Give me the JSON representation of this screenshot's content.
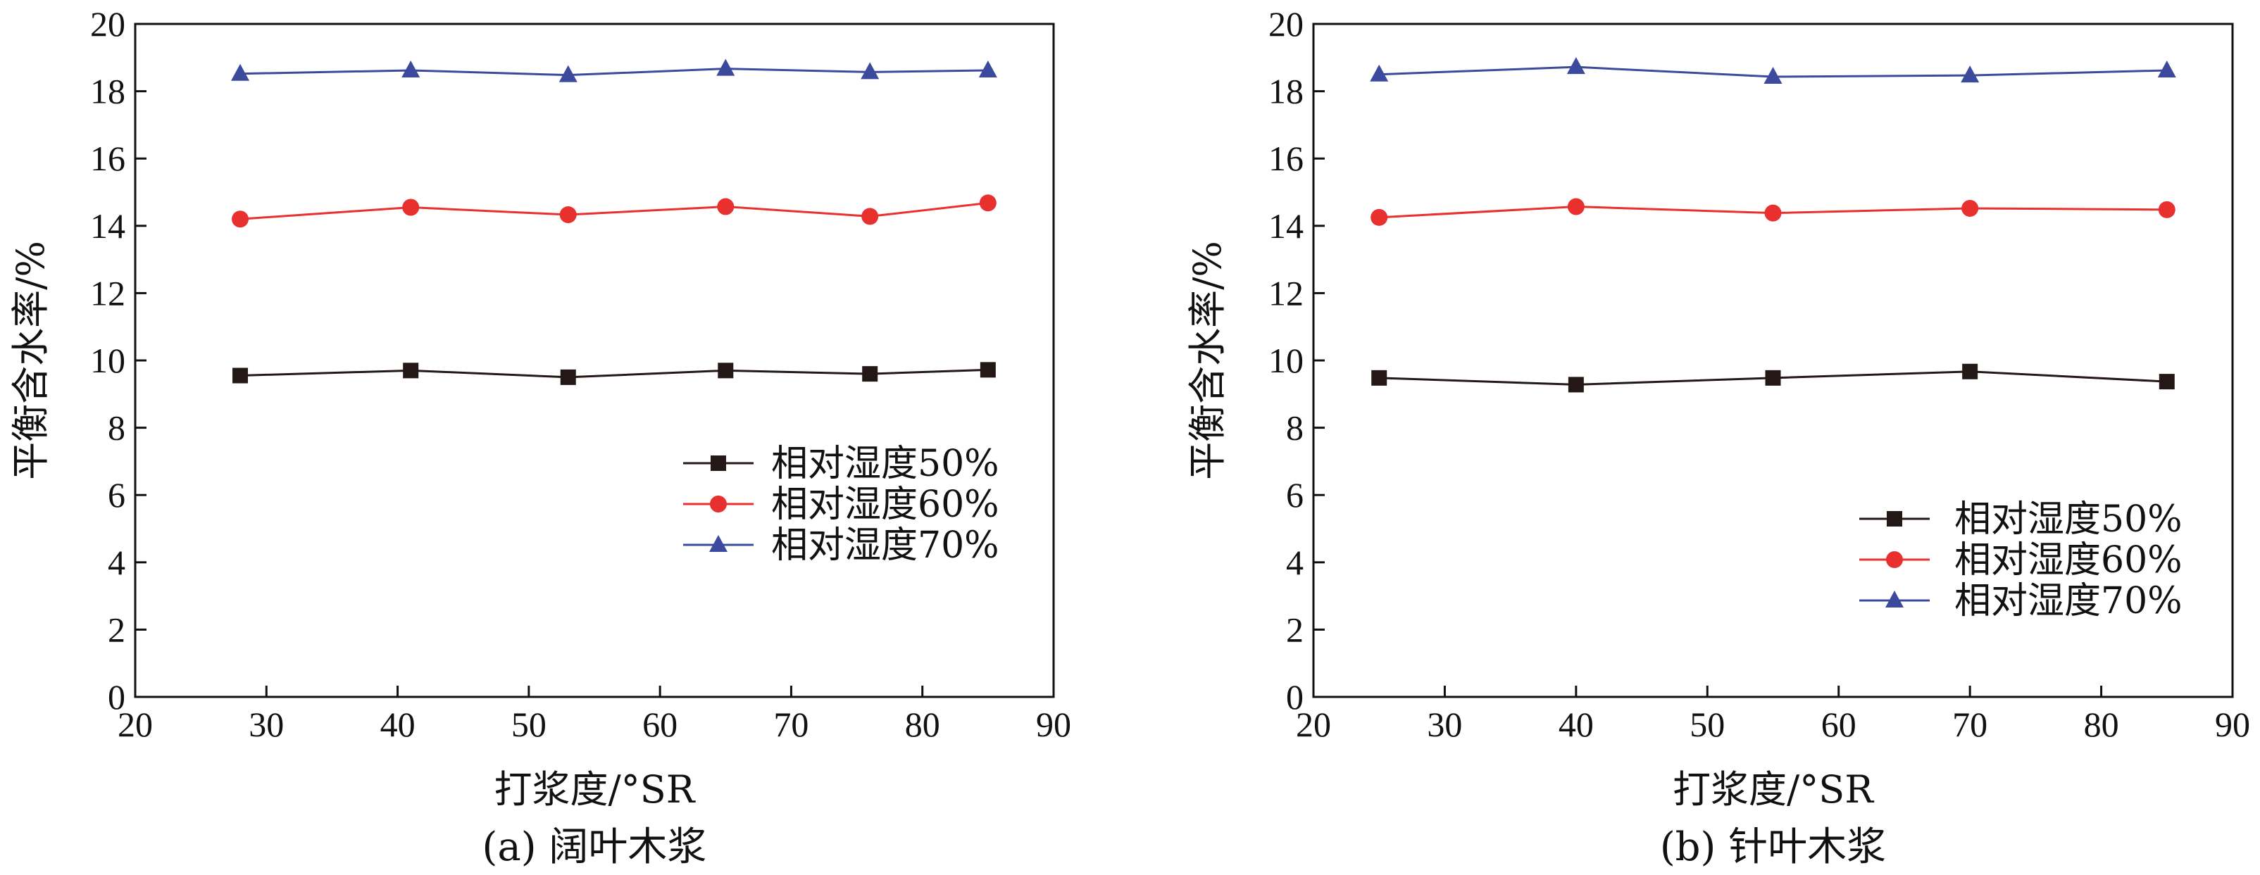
{
  "chart_data": [
    {
      "type": "line",
      "caption": "(a) 阔叶木浆",
      "xlabel": "打浆度/°SR",
      "ylabel": "平衡含水率/%",
      "xlim": [
        20,
        90
      ],
      "ylim": [
        0,
        20
      ],
      "xticks": [
        20,
        30,
        40,
        50,
        60,
        70,
        80,
        90
      ],
      "yticks": [
        0,
        2,
        4,
        6,
        8,
        10,
        12,
        14,
        16,
        18,
        20
      ],
      "grid": false,
      "legend_position": "right",
      "x": [
        28,
        41,
        53,
        65,
        76,
        85
      ],
      "series": [
        {
          "name": "相对湿度50%",
          "color": "#231815",
          "marker": "square",
          "values": [
            9.55,
            9.7,
            9.5,
            9.7,
            9.6,
            9.72
          ]
        },
        {
          "name": "相对湿度60%",
          "color": "#e8312f",
          "marker": "circle",
          "values": [
            14.2,
            14.55,
            14.33,
            14.57,
            14.28,
            14.68
          ]
        },
        {
          "name": "相对湿度70%",
          "color": "#3b4a9c",
          "marker": "triangle",
          "values": [
            18.52,
            18.62,
            18.48,
            18.67,
            18.57,
            18.62
          ]
        }
      ]
    },
    {
      "type": "line",
      "caption": "(b) 针叶木浆",
      "xlabel": "打浆度/°SR",
      "ylabel": "平衡含水率/%",
      "xlim": [
        20,
        90
      ],
      "ylim": [
        0,
        20
      ],
      "xticks": [
        20,
        30,
        40,
        50,
        60,
        70,
        80,
        90
      ],
      "yticks": [
        0,
        2,
        4,
        6,
        8,
        10,
        12,
        14,
        16,
        18,
        20
      ],
      "grid": false,
      "legend_position": "bottom-right",
      "x": [
        25,
        40,
        55,
        70,
        85
      ],
      "series": [
        {
          "name": "相对湿度50%",
          "color": "#231815",
          "marker": "square",
          "values": [
            9.48,
            9.28,
            9.48,
            9.67,
            9.37
          ]
        },
        {
          "name": "相对湿度60%",
          "color": "#e8312f",
          "marker": "circle",
          "values": [
            14.25,
            14.57,
            14.38,
            14.52,
            14.48
          ]
        },
        {
          "name": "相对湿度70%",
          "color": "#3b4a9c",
          "marker": "triangle",
          "values": [
            18.5,
            18.72,
            18.43,
            18.47,
            18.62
          ]
        }
      ]
    }
  ]
}
